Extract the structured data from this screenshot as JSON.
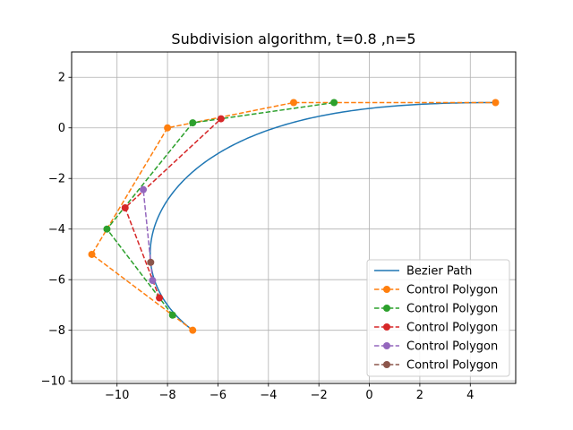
{
  "chart_data": {
    "type": "line",
    "title": "Subdivision algorithm, t=0.8 ,n=5",
    "xlabel": "",
    "ylabel": "",
    "xlim": [
      -11.8,
      5.8
    ],
    "ylim": [
      -10.1,
      3.0
    ],
    "xticks": [
      -10,
      -8,
      -6,
      -4,
      -2,
      0,
      2,
      4
    ],
    "yticks": [
      2,
      0,
      -2,
      -4,
      -6,
      -8,
      -10
    ],
    "grid": true,
    "legend_position": "bottom-right",
    "curve": {
      "name": "Bezier Path",
      "color": "#1f77b4",
      "style": "solid",
      "control_points": [
        [
          -7,
          -8
        ],
        [
          -11,
          -5
        ],
        [
          -8,
          0
        ],
        [
          -3,
          1
        ],
        [
          5,
          1
        ]
      ]
    },
    "series": [
      {
        "name": "Control Polygon",
        "color": "#ff7f0e",
        "style": "dashed",
        "points": [
          [
            -7,
            -8
          ],
          [
            -11,
            -5
          ],
          [
            -8,
            0
          ],
          [
            -3,
            1
          ],
          [
            5,
            1
          ]
        ]
      },
      {
        "name": "Control Polygon",
        "color": "#2ca02c",
        "style": "dashed",
        "points": [
          [
            -7.8,
            -7.4
          ],
          [
            -10.4,
            -4
          ],
          [
            -7,
            0.2
          ],
          [
            -1.4,
            1
          ]
        ]
      },
      {
        "name": "Control Polygon",
        "color": "#d62728",
        "style": "dashed",
        "points": [
          [
            -8.32,
            -6.72
          ],
          [
            -9.68,
            -3.16
          ],
          [
            -5.88,
            0.36
          ]
        ]
      },
      {
        "name": "Control Polygon",
        "color": "#9467bd",
        "style": "dashed",
        "points": [
          [
            -8.592,
            -6.032
          ],
          [
            -8.96,
            -2.44
          ]
        ]
      },
      {
        "name": "Control Polygon",
        "color": "#8c564b",
        "style": "dashed",
        "points": [
          [
            -8.666,
            -5.314
          ]
        ]
      }
    ]
  }
}
